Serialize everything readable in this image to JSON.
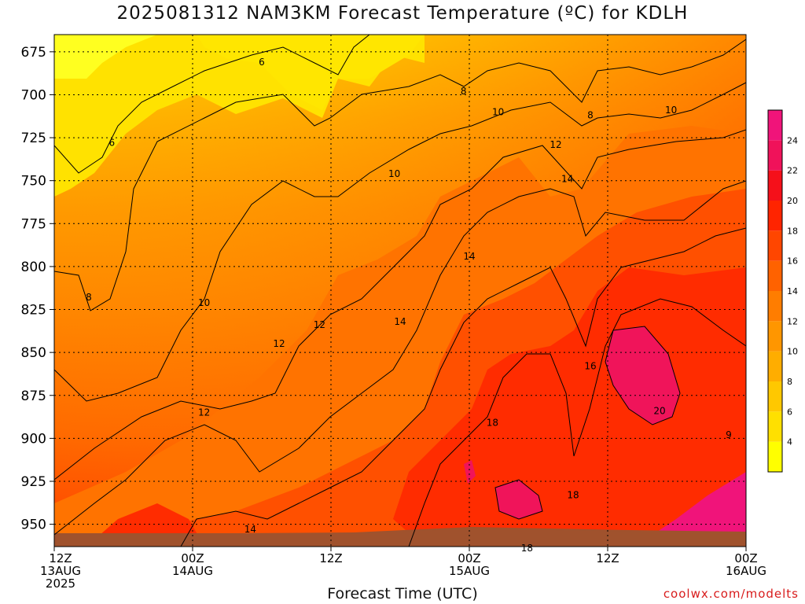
{
  "title": "2025081312 NAM3KM Forecast Temperature (ºC) for KDLH",
  "credit": "coolwx.com/modelts",
  "chart_data": {
    "type": "heatmap",
    "title": "2025081312 NAM3KM Forecast Temperature (ºC) for KDLH",
    "xlabel": "Forecast Time (UTC)",
    "ylabel": "",
    "y_axis": {
      "ticks": [
        675,
        700,
        725,
        750,
        775,
        800,
        825,
        850,
        875,
        900,
        925,
        950
      ],
      "range": [
        665,
        963
      ],
      "inverted": true
    },
    "x_axis": {
      "range_hours": [
        0,
        60
      ],
      "ticks": [
        {
          "hour": 0,
          "line1": "12Z",
          "line2": "13AUG",
          "line3": "2025"
        },
        {
          "hour": 12,
          "line1": "00Z",
          "line2": "14AUG",
          "line3": ""
        },
        {
          "hour": 24,
          "line1": "12Z",
          "line2": "",
          "line3": ""
        },
        {
          "hour": 36,
          "line1": "00Z",
          "line2": "15AUG",
          "line3": ""
        },
        {
          "hour": 48,
          "line1": "12Z",
          "line2": "",
          "line3": ""
        },
        {
          "hour": 60,
          "line1": "00Z",
          "line2": "16AUG",
          "line3": ""
        }
      ]
    },
    "grid": true,
    "colorbar": {
      "ticks": [
        4,
        6,
        8,
        10,
        12,
        14,
        16,
        18,
        20,
        22,
        24
      ],
      "levels": [
        2,
        4,
        6,
        8,
        10,
        12,
        14,
        16,
        18,
        20,
        22,
        24,
        26
      ],
      "colors": [
        "#ffff00",
        "#ffe000",
        "#ffc800",
        "#ffad00",
        "#ff9600",
        "#ff7d00",
        "#ff6200",
        "#ff4600",
        "#ff2400",
        "#f5101a",
        "#f0125a",
        "#f0147a",
        "#f0168e"
      ]
    },
    "contour_labels": [
      {
        "hour": 18,
        "p": 681,
        "text": "6"
      },
      {
        "hour": 5,
        "p": 728,
        "text": "6"
      },
      {
        "hour": 35.5,
        "p": 698,
        "text": "8"
      },
      {
        "hour": 46.5,
        "p": 712,
        "text": "8"
      },
      {
        "hour": 3,
        "p": 818,
        "text": "8"
      },
      {
        "hour": 38.5,
        "p": 710,
        "text": "10"
      },
      {
        "hour": 53.5,
        "p": 709,
        "text": "10"
      },
      {
        "hour": 29.5,
        "p": 746,
        "text": "10"
      },
      {
        "hour": 13,
        "p": 821,
        "text": "10"
      },
      {
        "hour": 43.5,
        "p": 729,
        "text": "12"
      },
      {
        "hour": 19.5,
        "p": 845,
        "text": "12"
      },
      {
        "hour": 23,
        "p": 834,
        "text": "12"
      },
      {
        "hour": 13,
        "p": 885,
        "text": "12"
      },
      {
        "hour": 44.5,
        "p": 749,
        "text": "14"
      },
      {
        "hour": 36,
        "p": 794,
        "text": "14"
      },
      {
        "hour": 30,
        "p": 832,
        "text": "14"
      },
      {
        "hour": 17,
        "p": 953,
        "text": "14"
      },
      {
        "hour": 46.5,
        "p": 858,
        "text": "16"
      },
      {
        "hour": 38,
        "p": 891,
        "text": "18"
      },
      {
        "hour": 45,
        "p": 933,
        "text": "18"
      },
      {
        "hour": 41,
        "p": 964,
        "text": "18"
      },
      {
        "hour": 52.5,
        "p": 884,
        "text": "20"
      },
      {
        "hour": 58.5,
        "p": 898,
        "text": "9"
      }
    ]
  }
}
